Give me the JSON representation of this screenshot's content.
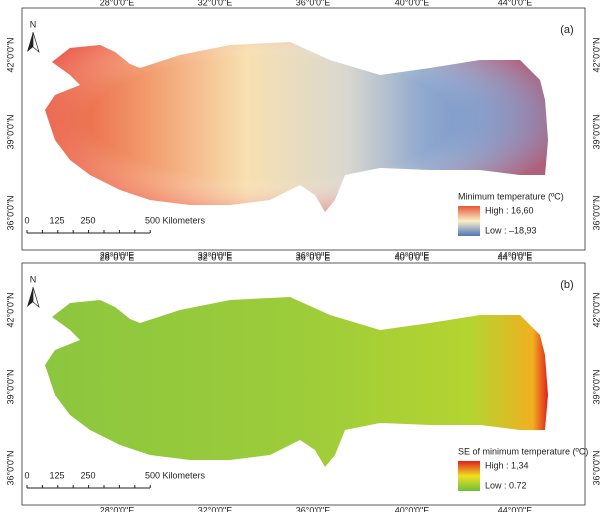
{
  "panels": [
    {
      "label": "(a)",
      "lon_labels": [
        "28°0'0\"E",
        "32°0'0\"E",
        "36°0'0\"E",
        "40°0'0\"E",
        "44°0'0\"E"
      ],
      "lat_labels": [
        "42°0'0\"N",
        "39°0'0\"N",
        "36°0'0\"N"
      ],
      "north": "N",
      "scale": [
        "0",
        "125",
        "250",
        "500 Kilometers"
      ],
      "legend": {
        "title": "Minimum temperature (ºC)",
        "high": "High : 16,60",
        "low": "Low : –18,93"
      }
    },
    {
      "label": "(b)",
      "lon_labels": [
        "28°0'0\"E",
        "32°0'0\"E",
        "36°0'0\"E",
        "40°0'0\"E",
        "44°0'0\"E"
      ],
      "lat_labels": [
        "42°0'0\"N",
        "39°0'0\"N",
        "36°0'0\"N"
      ],
      "north": "N",
      "scale": [
        "0",
        "125",
        "250",
        "500 Kilometers"
      ],
      "legend": {
        "title": "SE of minimum temperature (ºC)",
        "high": "High : 1,34",
        "low": "Low : 0.72"
      }
    }
  ]
}
